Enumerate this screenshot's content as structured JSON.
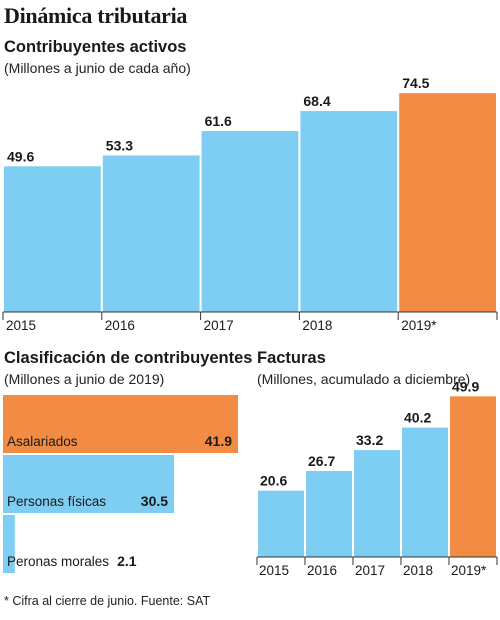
{
  "title": "Dinámica tributaria",
  "footnote": "* Cifra al cierre de junio. Fuente: SAT",
  "colors": {
    "bar": "#7ecdf3",
    "highlight": "#f28b44",
    "axis": "#333333"
  },
  "chart_data": [
    {
      "type": "bar",
      "title": "Contribuyentes activos",
      "subtitle": "(Millones a junio de cada año)",
      "categories": [
        "2015",
        "2016",
        "2017",
        "2018",
        "2019*"
      ],
      "values": [
        49.6,
        53.3,
        61.6,
        68.4,
        74.5
      ],
      "value_labels": [
        "49.6",
        "53.3",
        "61.6",
        "68.4",
        "74.5"
      ],
      "highlight_index": 4,
      "ylim": [
        0,
        80
      ],
      "grid": false,
      "legend": "none"
    },
    {
      "type": "bar",
      "orientation": "horizontal",
      "title": "Clasificación de contribuyentes",
      "subtitle": "(Millones a junio de 2019)",
      "categories": [
        "Asalariados",
        "Personas físicas",
        "Peronas morales"
      ],
      "values": [
        41.9,
        30.5,
        2.1
      ],
      "value_labels": [
        "41.9",
        "30.5",
        "2.1"
      ],
      "highlight_index": 0,
      "xlim": [
        0,
        41.9
      ],
      "grid": false,
      "legend": "none"
    },
    {
      "type": "bar",
      "title": "Facturas",
      "subtitle": "(Millones, acumulado a diciembre)",
      "categories": [
        "2015",
        "2016",
        "2017",
        "2018",
        "2019*"
      ],
      "values": [
        20.6,
        26.7,
        33.2,
        40.2,
        49.9
      ],
      "value_labels": [
        "20.6",
        "26.7",
        "33.2",
        "40.2",
        "49.9"
      ],
      "highlight_index": 4,
      "ylim": [
        0,
        50
      ],
      "grid": false,
      "legend": "none"
    }
  ]
}
